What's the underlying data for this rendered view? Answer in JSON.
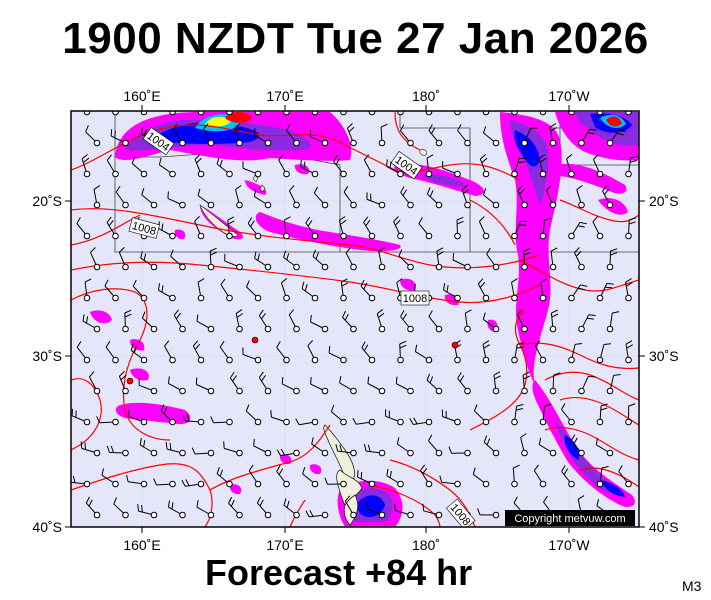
{
  "header": {
    "title": "1900 NZDT Tue 27 Jan 2026"
  },
  "footer": {
    "forecast": "Forecast +84 hr",
    "model": "M3",
    "copyright": "Copyright metvuw.com"
  },
  "map": {
    "lon_labels_top": [
      "160˚E",
      "170˚E",
      "180˚",
      "170˚W"
    ],
    "lon_labels_bottom": [
      "160˚E",
      "170˚E",
      "180˚",
      "170˚W"
    ],
    "lat_labels_left": [
      "20˚S",
      "30˚S",
      "40˚S"
    ],
    "lat_labels_right": [
      "20˚S",
      "30˚S",
      "40˚S"
    ],
    "isobar_labels": [
      "1004",
      "1004",
      "1008",
      "1008",
      "1008"
    ],
    "colors": {
      "ocean": "#e6e6fa",
      "land": "#f0f0dc",
      "isobar": "#ff0000",
      "rain_light": "#ff00ff",
      "rain_mid": "#8a2be2",
      "rain_heavy": "#0000ff",
      "rain_extreme": "#ff0000"
    },
    "legend": "none"
  }
}
